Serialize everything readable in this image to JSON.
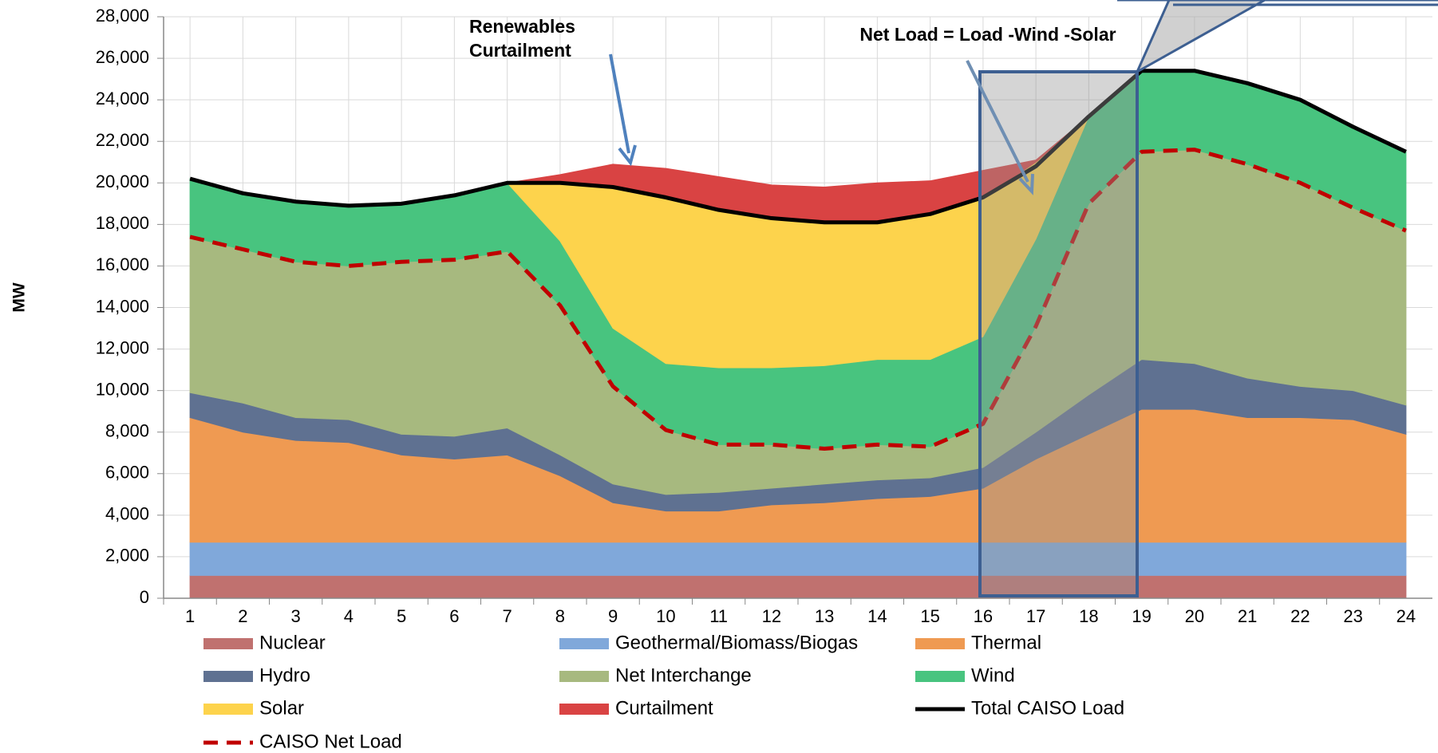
{
  "chart_data": {
    "type": "stacked_area",
    "y_label": "MW",
    "categories": [
      "1",
      "2",
      "3",
      "4",
      "5",
      "6",
      "7",
      "8",
      "9",
      "10",
      "11",
      "12",
      "13",
      "14",
      "15",
      "16",
      "17",
      "18",
      "19",
      "20",
      "21",
      "22",
      "23",
      "24"
    ],
    "ylim": [
      0,
      28000
    ],
    "yticks": [
      0,
      {
        "value": 2000,
        "label": "2,000"
      },
      {
        "value": 4000,
        "label": "4,000"
      },
      {
        "value": 6000,
        "label": "6,000"
      },
      {
        "value": 8000,
        "label": "8,000"
      },
      {
        "value": 10000,
        "label": "10,000"
      },
      {
        "value": 12000,
        "label": "12,000"
      },
      {
        "value": 14000,
        "label": "14,000"
      },
      {
        "value": 16000,
        "label": "16,000"
      },
      {
        "value": 18000,
        "label": "18,000"
      },
      {
        "value": 20000,
        "label": "20,000"
      },
      {
        "value": 22000,
        "label": "22,000"
      },
      {
        "value": 24000,
        "label": "24,000"
      },
      {
        "value": 26000,
        "label": "26,000"
      },
      {
        "value": 28000,
        "label": "28,000"
      }
    ],
    "grid": true,
    "series": [
      {
        "name": "Nuclear",
        "color": "#c0716f",
        "values": [
          1100,
          1100,
          1100,
          1100,
          1100,
          1100,
          1100,
          1100,
          1100,
          1100,
          1100,
          1100,
          1100,
          1100,
          1100,
          1100,
          1100,
          1100,
          1100,
          1100,
          1100,
          1100,
          1100,
          1100
        ]
      },
      {
        "name": "Geothermal/Biomass/Biogas",
        "color": "#80a8da",
        "values": [
          1600,
          1600,
          1600,
          1600,
          1600,
          1600,
          1600,
          1600,
          1600,
          1600,
          1600,
          1600,
          1600,
          1600,
          1600,
          1600,
          1600,
          1600,
          1600,
          1600,
          1600,
          1600,
          1600,
          1600
        ]
      },
      {
        "name": "Thermal",
        "color": "#ef9a52",
        "values": [
          6000,
          5300,
          4900,
          4800,
          4200,
          4000,
          4200,
          3200,
          1900,
          1500,
          1500,
          1800,
          1900,
          2100,
          2200,
          2600,
          4000,
          5200,
          6400,
          6400,
          6000,
          6000,
          5900,
          5200
        ]
      },
      {
        "name": "Hydro",
        "color": "#5f7191",
        "values": [
          1200,
          1400,
          1100,
          1100,
          1000,
          1100,
          1300,
          1000,
          900,
          800,
          900,
          800,
          900,
          900,
          900,
          1000,
          1300,
          1900,
          2400,
          2200,
          1900,
          1500,
          1400,
          1400
        ]
      },
      {
        "name": "Net Interchange",
        "color": "#a7b97f",
        "values": [
          7500,
          7400,
          7500,
          7400,
          8300,
          8500,
          8500,
          7200,
          4700,
          3100,
          2300,
          2100,
          1700,
          1700,
          1500,
          2100,
          5100,
          9200,
          10000,
          10300,
          10300,
          9800,
          8800,
          8400
        ]
      },
      {
        "name": "Wind",
        "color": "#48c47f",
        "values": [
          2800,
          2700,
          2900,
          2900,
          2800,
          3100,
          3300,
          3100,
          2800,
          3200,
          3700,
          3700,
          4000,
          4100,
          4200,
          4200,
          4200,
          4200,
          3900,
          3800,
          3900,
          4000,
          3900,
          3800
        ]
      },
      {
        "name": "Solar",
        "color": "#fdd34c",
        "values": [
          0,
          0,
          0,
          0,
          0,
          0,
          0,
          2800,
          6800,
          8000,
          7600,
          7200,
          6900,
          6600,
          7000,
          6700,
          3700,
          0,
          0,
          0,
          0,
          0,
          0,
          0
        ]
      },
      {
        "name": "Curtailment",
        "color": "#d94343",
        "values": [
          0,
          0,
          0,
          0,
          0,
          0,
          0,
          400,
          1100,
          1400,
          1600,
          1600,
          1700,
          1900,
          1600,
          1300,
          100,
          0,
          0,
          0,
          0,
          0,
          0,
          0
        ]
      }
    ],
    "line_series": [
      {
        "name": "Total CAISO Load",
        "color": "#000000",
        "dashed": false,
        "values": [
          20200,
          19500,
          19100,
          18900,
          19000,
          19400,
          20000,
          20000,
          19800,
          19300,
          18700,
          18300,
          18100,
          18100,
          18500,
          19300,
          20800,
          23200,
          25400,
          25400,
          24800,
          24000,
          22700,
          21500
        ]
      },
      {
        "name": "CAISO Net Load",
        "color": "#c00000",
        "dashed": true,
        "values": [
          17400,
          16800,
          16200,
          16000,
          16200,
          16300,
          16700,
          14100,
          10200,
          8100,
          7400,
          7400,
          7200,
          7400,
          7300,
          8400,
          13100,
          19000,
          21500,
          21600,
          20900,
          20000,
          18800,
          17700
        ]
      }
    ],
    "annotations": [
      "Renewables",
      "Curtailment",
      "Net Load = Load -Wind -Solar"
    ]
  }
}
